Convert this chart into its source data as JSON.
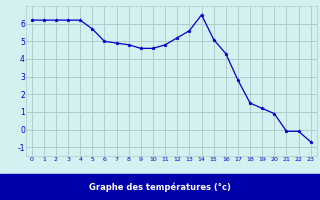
{
  "hours": [
    0,
    1,
    2,
    3,
    4,
    5,
    6,
    7,
    8,
    9,
    10,
    11,
    12,
    13,
    14,
    15,
    16,
    17,
    18,
    19,
    20,
    21,
    22,
    23
  ],
  "temperatures": [
    6.2,
    6.2,
    6.2,
    6.2,
    6.2,
    5.7,
    5.0,
    4.9,
    4.8,
    4.6,
    4.6,
    4.8,
    5.2,
    5.6,
    6.5,
    5.1,
    4.3,
    2.8,
    1.5,
    1.2,
    0.9,
    -0.1,
    -0.1,
    -0.7
  ],
  "line_color": "#0000cc",
  "marker": "*",
  "bg_color": "#d4f0f0",
  "grid_color": "#b0cccc",
  "xlabel": "Graphe des températures (°c)",
  "xlabel_bg": "#0000aa",
  "xlabel_text_color": "#ffffff",
  "ylim": [
    -1.5,
    7.0
  ],
  "xlim": [
    -0.5,
    23.5
  ],
  "yticks": [
    -1,
    0,
    1,
    2,
    3,
    4,
    5,
    6
  ],
  "xticks": [
    0,
    1,
    2,
    3,
    4,
    5,
    6,
    7,
    8,
    9,
    10,
    11,
    12,
    13,
    14,
    15,
    16,
    17,
    18,
    19,
    20,
    21,
    22,
    23
  ],
  "tick_color": "#0000cc",
  "markersize": 2.5,
  "linewidth": 0.9
}
